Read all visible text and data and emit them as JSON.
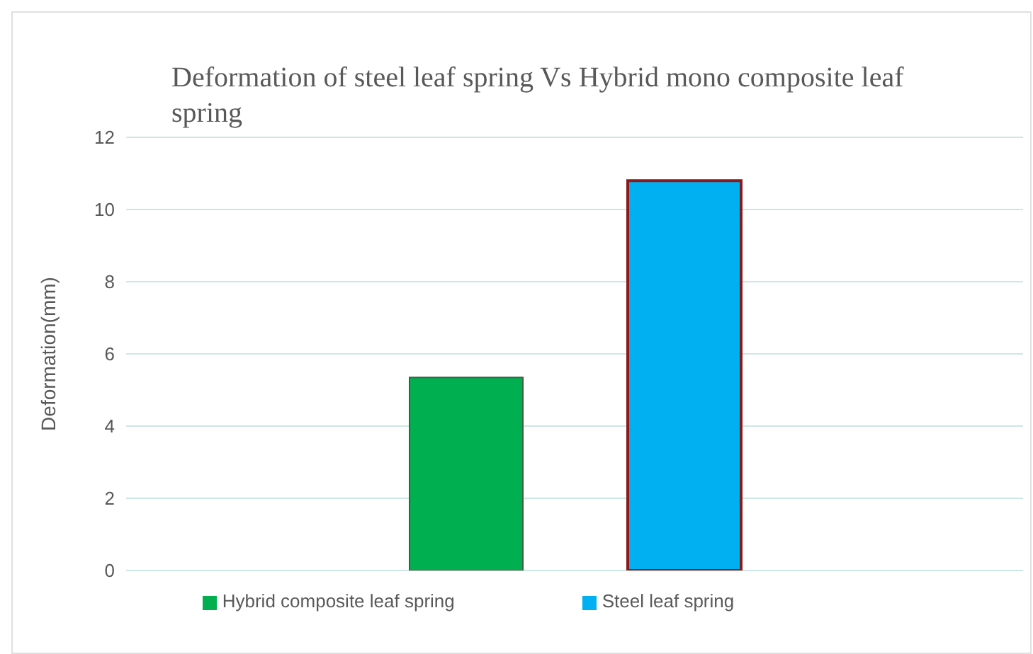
{
  "chart_data": {
    "type": "bar",
    "title": "Deformation of steel leaf spring Vs Hybrid mono composite leaf spring",
    "ylabel": "Deformation(mm)",
    "categories": [
      null
    ],
    "series": [
      {
        "name": "Hybrid composite leaf spring",
        "color": "#00b050",
        "values": [
          5.35
        ]
      },
      {
        "name": "Steel leaf spring",
        "color": "#00b0f0",
        "values": [
          10.8
        ]
      }
    ],
    "ylim": [
      0,
      12
    ],
    "yticks": [
      0,
      2,
      4,
      6,
      8,
      10,
      12
    ],
    "grid": "y",
    "legend": "bottom"
  }
}
